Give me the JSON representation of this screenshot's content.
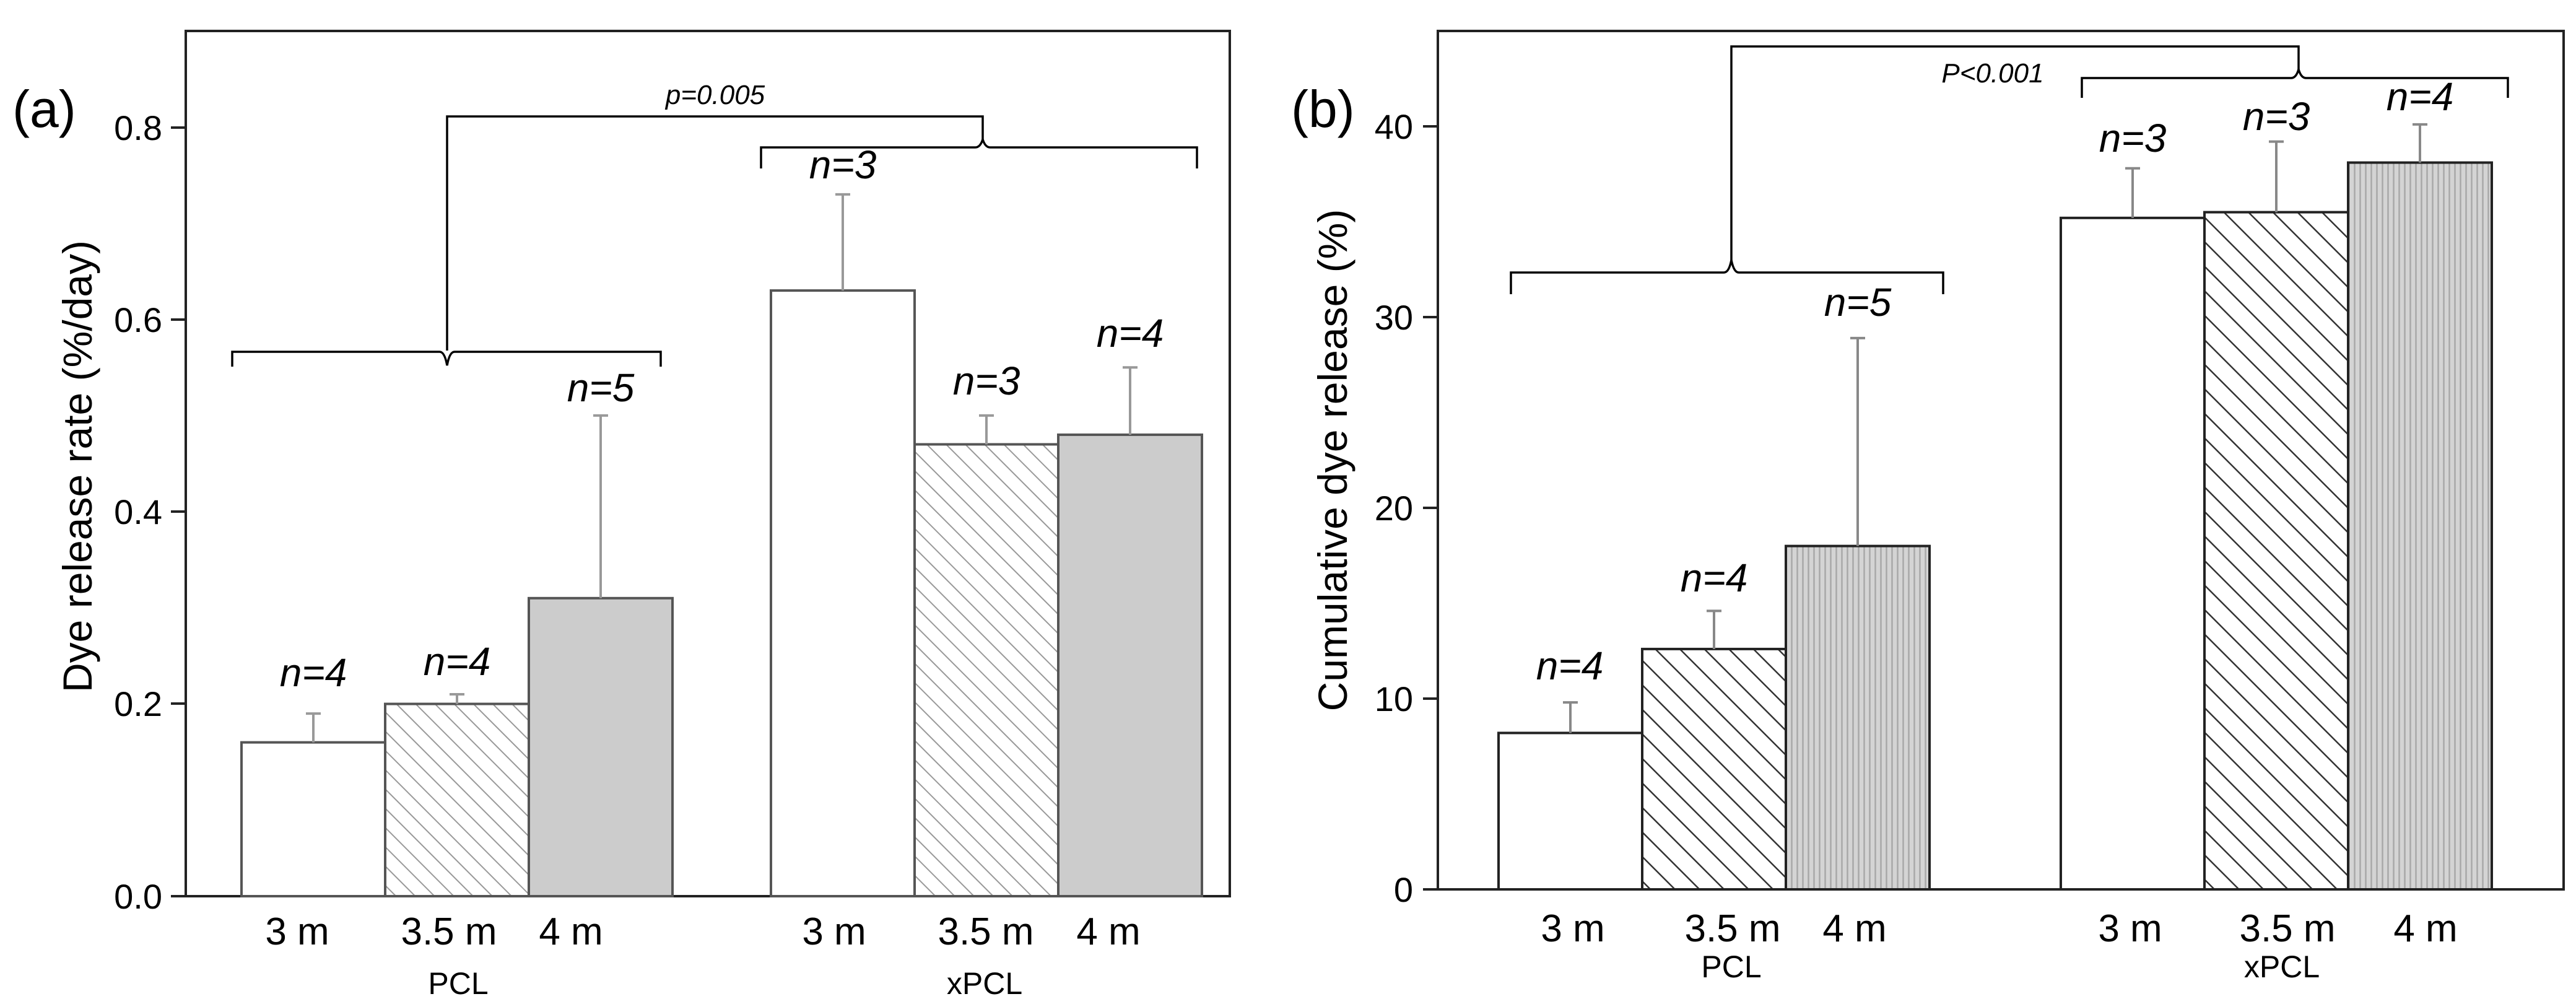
{
  "chart_data": [
    {
      "type": "bar",
      "panel_label": "(a)",
      "ylabel": "Dye release rate (%/day)",
      "ylim": [
        0,
        0.9
      ],
      "yticks": [
        "0.0",
        "0.2",
        "0.4",
        "0.6",
        "0.8"
      ],
      "ytick_values": [
        0,
        0.2,
        0.4,
        0.6,
        0.8
      ],
      "groups": [
        "PCL",
        "xPCL"
      ],
      "categories": [
        "3 m",
        "3.5 m",
        "4 m"
      ],
      "bars": [
        {
          "group": "PCL",
          "category": "3 m",
          "value": 0.16,
          "error": 0.03,
          "n": "n=4",
          "fill": "white"
        },
        {
          "group": "PCL",
          "category": "3.5 m",
          "value": 0.2,
          "error": 0.01,
          "n": "n=4",
          "fill": "hatch"
        },
        {
          "group": "PCL",
          "category": "4 m",
          "value": 0.31,
          "error": 0.19,
          "n": "n=5",
          "fill": "gray"
        },
        {
          "group": "xPCL",
          "category": "3 m",
          "value": 0.63,
          "error": 0.1,
          "n": "n=3",
          "fill": "white"
        },
        {
          "group": "xPCL",
          "category": "3.5 m",
          "value": 0.47,
          "error": 0.03,
          "n": "n=3",
          "fill": "hatch"
        },
        {
          "group": "xPCL",
          "category": "4 m",
          "value": 0.48,
          "error": 0.07,
          "n": "n=4",
          "fill": "gray"
        }
      ],
      "significance": "p=0.005",
      "colors": {
        "gray_fill": "#cccccc",
        "hatch_stroke": "#999999",
        "error_bar": "#999999",
        "outline": "#555555"
      }
    },
    {
      "type": "bar",
      "panel_label": "(b)",
      "ylabel": "Cumulative dye release (%)",
      "ylim": [
        0,
        45
      ],
      "yticks": [
        "0",
        "10",
        "20",
        "30",
        "40"
      ],
      "ytick_values": [
        0,
        10,
        20,
        30,
        40
      ],
      "groups": [
        "PCL",
        "xPCL"
      ],
      "categories": [
        "3 m",
        "3.5 m",
        "4 m"
      ],
      "bars": [
        {
          "group": "PCL",
          "category": "3 m",
          "value": 8.2,
          "error": 1.6,
          "n": "n=4",
          "fill": "white"
        },
        {
          "group": "PCL",
          "category": "3.5 m",
          "value": 12.6,
          "error": 2.0,
          "n": "n=4",
          "fill": "hatch"
        },
        {
          "group": "PCL",
          "category": "4 m",
          "value": 18.0,
          "error": 10.9,
          "n": "n=5",
          "fill": "gray"
        },
        {
          "group": "xPCL",
          "category": "3 m",
          "value": 35.2,
          "error": 2.6,
          "n": "n=3",
          "fill": "white"
        },
        {
          "group": "xPCL",
          "category": "3.5 m",
          "value": 35.5,
          "error": 3.7,
          "n": "n=3",
          "fill": "hatch"
        },
        {
          "group": "xPCL",
          "category": "4 m",
          "value": 38.1,
          "error": 2.0,
          "n": "n=4",
          "fill": "gray"
        }
      ],
      "significance": "P<0.001",
      "colors": {
        "gray_fill": "#cccccc",
        "hatch_stroke": "#333333",
        "error_bar": "#888888",
        "outline": "#222222"
      }
    }
  ]
}
